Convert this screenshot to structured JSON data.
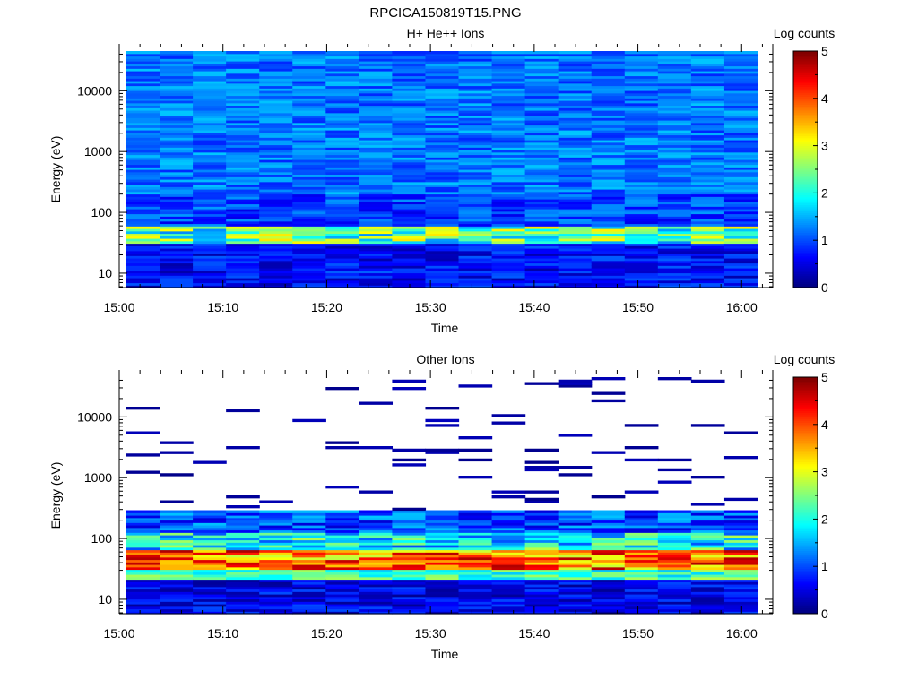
{
  "figure": {
    "title": "RPCICA150819T15.PNG"
  },
  "chart_data": [
    {
      "type": "heatmap",
      "title": "H+ He++ Ions",
      "xlabel": "Time",
      "ylabel": "Energy (eV)",
      "colorbar_label": "Log counts",
      "x_tick_labels": [
        "15:00",
        "15:10",
        "15:20",
        "15:30",
        "15:40",
        "15:50",
        "16:00"
      ],
      "y_tick_labels": [
        "10",
        "100",
        "1000",
        "10000"
      ],
      "colorbar_ticks": [
        "0",
        "1",
        "2",
        "3",
        "4",
        "5"
      ],
      "yscale": "log",
      "ylim": [
        5.8,
        45000
      ],
      "xlim_minutes": [
        0,
        63
      ],
      "clim": [
        0,
        5
      ],
      "time_bins": 19,
      "time_bin_minutes": 3.3,
      "energy_bins": 96,
      "description_values": {
        "above_200eV_log_counts": [
          0.8,
          1.6
        ],
        "near_40eV_log_counts": [
          1.3,
          3.4
        ],
        "below_30eV_log_counts": [
          0.2,
          1.1
        ]
      }
    },
    {
      "type": "heatmap",
      "title": "Other Ions",
      "xlabel": "Time",
      "ylabel": "Energy (eV)",
      "colorbar_label": "Log counts",
      "x_tick_labels": [
        "15:00",
        "15:10",
        "15:20",
        "15:30",
        "15:40",
        "15:50",
        "16:00"
      ],
      "y_tick_labels": [
        "10",
        "100",
        "1000",
        "10000"
      ],
      "colorbar_ticks": [
        "0",
        "1",
        "2",
        "3",
        "4",
        "5"
      ],
      "yscale": "log",
      "ylim": [
        5.8,
        45000
      ],
      "xlim_minutes": [
        0,
        63
      ],
      "clim": [
        0,
        5
      ],
      "time_bins": 19,
      "time_bin_minutes": 3.3,
      "description_values": {
        "sparse_above_300eV_log_counts": [
          0.05,
          0.3
        ],
        "peak_30_60eV_log_counts": [
          3.0,
          4.9
        ],
        "below_25eV_log_counts": [
          0.1,
          1.0
        ]
      }
    }
  ],
  "colors": {
    "colormap": [
      "#00007f",
      "#0000ff",
      "#007fff",
      "#00ffff",
      "#7fff7f",
      "#ffff00",
      "#ff7f00",
      "#ff0000",
      "#7f0000"
    ]
  }
}
